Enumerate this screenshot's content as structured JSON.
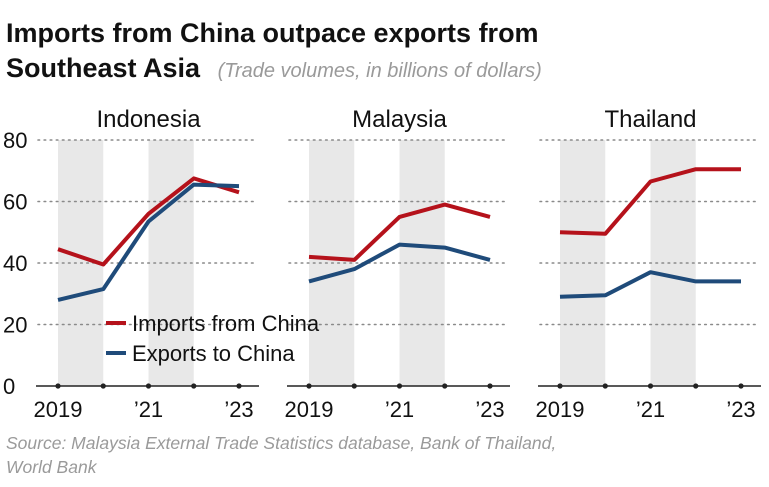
{
  "title": {
    "line1": "Imports from China outpace exports from",
    "line2": "Southeast Asia",
    "subtitle": "(Trade volumes, in billions of dollars)"
  },
  "source": {
    "line1": "Source: Malaysia External Trade Statistics database, Bank of Thailand,",
    "line2": "World Bank"
  },
  "colors": {
    "imports": "#b5121b",
    "exports": "#1f4b7a",
    "shade": "#e8e8e8",
    "grid": "#8a8a8a",
    "axis": "#222222",
    "subtle": "#9a9a9a"
  },
  "chart_data": [
    {
      "type": "line",
      "title": "Indonesia",
      "categories": [
        "2019",
        "2020",
        "2021",
        "2022",
        "2023"
      ],
      "tick_labels": [
        "2019",
        "",
        "’21",
        "",
        "’23"
      ],
      "ylim": [
        0,
        80
      ],
      "yticks": [
        0,
        20,
        40,
        60,
        80
      ],
      "shaded_years": [
        "2019",
        "2021"
      ],
      "series": [
        {
          "name": "Imports from China",
          "key": "imports",
          "values": [
            44.5,
            39.5,
            56,
            67.5,
            63
          ]
        },
        {
          "name": "Exports to China",
          "key": "exports",
          "values": [
            28,
            31.5,
            53.5,
            65.5,
            65
          ]
        }
      ]
    },
    {
      "type": "line",
      "title": "Malaysia",
      "categories": [
        "2019",
        "2020",
        "2021",
        "2022",
        "2023"
      ],
      "tick_labels": [
        "2019",
        "",
        "’21",
        "",
        "’23"
      ],
      "ylim": [
        0,
        80
      ],
      "yticks": [
        0,
        20,
        40,
        60,
        80
      ],
      "shaded_years": [
        "2019",
        "2021"
      ],
      "series": [
        {
          "name": "Imports from China",
          "key": "imports",
          "values": [
            42,
            41,
            55,
            59,
            55
          ]
        },
        {
          "name": "Exports to China",
          "key": "exports",
          "values": [
            34,
            38,
            46,
            45,
            41
          ]
        }
      ]
    },
    {
      "type": "line",
      "title": "Thailand",
      "categories": [
        "2019",
        "2020",
        "2021",
        "2022",
        "2023"
      ],
      "tick_labels": [
        "2019",
        "",
        "’21",
        "",
        "’23"
      ],
      "ylim": [
        0,
        80
      ],
      "yticks": [
        0,
        20,
        40,
        60,
        80
      ],
      "shaded_years": [
        "2019",
        "2021"
      ],
      "series": [
        {
          "name": "Imports from China",
          "key": "imports",
          "values": [
            50,
            49.5,
            66.5,
            70.5,
            70.5
          ]
        },
        {
          "name": "Exports to China",
          "key": "exports",
          "values": [
            29,
            29.5,
            37,
            34,
            34
          ]
        }
      ]
    }
  ],
  "legend": {
    "items": [
      {
        "label": "Imports from China",
        "key": "imports"
      },
      {
        "label": "Exports to China",
        "key": "exports"
      }
    ]
  }
}
